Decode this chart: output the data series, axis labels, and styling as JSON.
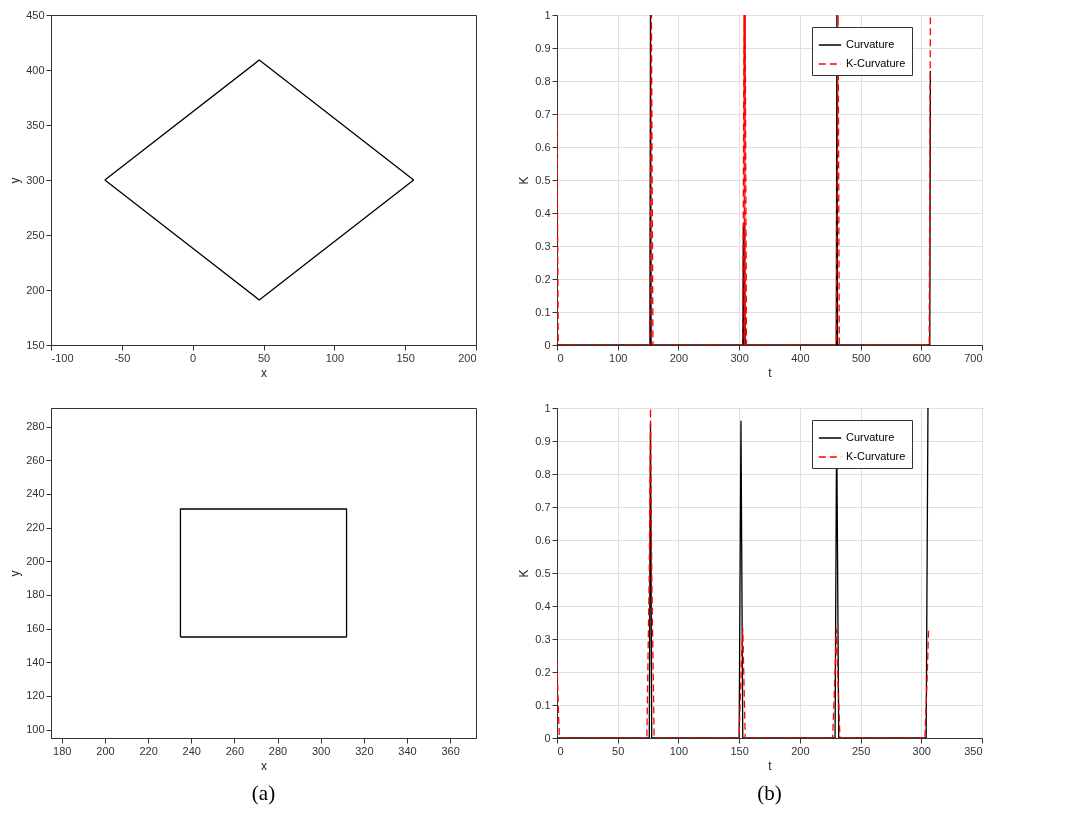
{
  "chart_data": [
    {
      "type": "line",
      "xlabel": "x",
      "ylabel": "y",
      "xlim": [
        -100,
        200
      ],
      "xticks": [
        -100,
        -50,
        0,
        50,
        100,
        150,
        200
      ],
      "ylim": [
        150,
        450
      ],
      "yticks": [
        150,
        200,
        250,
        300,
        350,
        400,
        450
      ],
      "grid": false,
      "legend": false,
      "series": [
        {
          "color": "#000000",
          "line_style": "solid",
          "x": [
            -62,
            47,
            156
          ],
          "values": [
            300,
            409,
            300
          ]
        },
        {
          "color": "#000000",
          "line_style": "solid",
          "x": [
            -62,
            47,
            156
          ],
          "values": [
            300,
            191,
            300
          ]
        }
      ]
    },
    {
      "type": "line",
      "xlabel": "t",
      "ylabel": "K",
      "xlim": [
        0,
        700
      ],
      "xticks": [
        0,
        100,
        200,
        300,
        400,
        500,
        600,
        700
      ],
      "ylim": [
        0,
        1
      ],
      "yticks": [
        0,
        0.1,
        0.2,
        0.3,
        0.4,
        0.5,
        0.6,
        0.7,
        0.8,
        0.9,
        1
      ],
      "grid": true,
      "legend": "top right",
      "series": [
        {
          "name": "Curvature",
          "color": "#000000",
          "line_style": "solid",
          "x": [
            0,
            153,
            154,
            155,
            306,
            307,
            308,
            309,
            310,
            460,
            461,
            462,
            614,
            615
          ],
          "values": [
            0,
            0,
            1,
            0,
            0,
            0.36,
            0,
            0.36,
            0,
            0,
            1,
            0,
            0,
            0.83
          ]
        },
        {
          "name": "K-Curvature",
          "color": "#ff0000",
          "line_style": "dashed",
          "x": [
            0,
            2,
            153,
            155.5,
            158,
            306,
            308,
            309,
            310,
            312,
            460,
            463,
            465,
            613,
            615
          ],
          "values": [
            0.7,
            0,
            0,
            1,
            0,
            0,
            1,
            0,
            1,
            0,
            0,
            1,
            0,
            0,
            1
          ]
        }
      ]
    },
    {
      "type": "line",
      "xlabel": "x",
      "ylabel": "y",
      "xlim": [
        175,
        372
      ],
      "xticks": [
        180,
        200,
        220,
        240,
        260,
        280,
        300,
        320,
        340,
        360
      ],
      "ylim": [
        95,
        291
      ],
      "yticks": [
        100,
        120,
        140,
        160,
        180,
        200,
        220,
        240,
        260,
        280
      ],
      "grid": false,
      "legend": false,
      "annotations": [
        "(a)"
      ],
      "series": [
        {
          "color": "#000000",
          "line_style": "solid",
          "x": [
            235,
            235,
            312,
            312
          ],
          "values": [
            155,
            231,
            231,
            155
          ]
        },
        {
          "color": "#000000",
          "line_style": "solid",
          "x": [
            235,
            312
          ],
          "values": [
            155,
            155
          ]
        }
      ]
    },
    {
      "type": "line",
      "xlabel": "t",
      "ylabel": "K",
      "xlim": [
        0,
        350
      ],
      "xticks": [
        0,
        50,
        100,
        150,
        200,
        250,
        300,
        350
      ],
      "ylim": [
        0,
        1
      ],
      "yticks": [
        0,
        0.1,
        0.2,
        0.3,
        0.4,
        0.5,
        0.6,
        0.7,
        0.8,
        0.9,
        1
      ],
      "grid": true,
      "legend": "top right",
      "annotations": [
        "(b)"
      ],
      "series": [
        {
          "name": "Curvature",
          "color": "#000000",
          "line_style": "solid",
          "x": [
            0,
            76,
            77,
            78,
            150,
            151.5,
            153,
            229,
            230.3,
            232,
            304,
            305.5
          ],
          "values": [
            0,
            0,
            0.95,
            0,
            0,
            0.96,
            0,
            0,
            0.96,
            0,
            0,
            1
          ]
        },
        {
          "name": "K-Curvature",
          "color": "#ff0000",
          "line_style": "dashed",
          "x": [
            0,
            1,
            2,
            74,
            76,
            77,
            78,
            80,
            150,
            152,
            153,
            155,
            227,
            229,
            230,
            233,
            303,
            305,
            306
          ],
          "values": [
            0.23,
            0.1,
            0,
            0,
            0.5,
            1,
            0.5,
            0,
            0,
            0.25,
            0.33,
            0,
            0,
            0.2,
            0.33,
            0,
            0,
            0.2,
            0.33
          ]
        }
      ]
    }
  ]
}
